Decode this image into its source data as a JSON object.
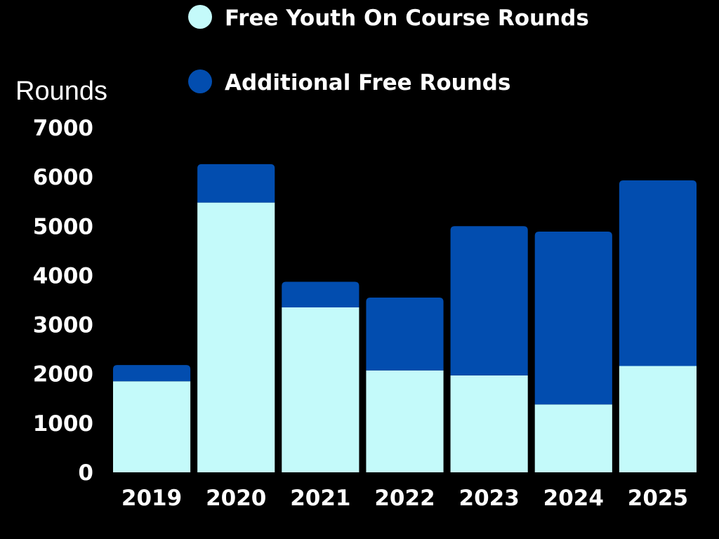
{
  "chart_data": {
    "type": "bar",
    "stacked": true,
    "categories": [
      "2019",
      "2020",
      "2021",
      "2022",
      "2023",
      "2024",
      "2025"
    ],
    "series": [
      {
        "name": "Free Youth On Course Rounds",
        "color": "#c4fafa",
        "values": [
          1850,
          5480,
          3350,
          2070,
          1970,
          1380,
          2160
        ]
      },
      {
        "name": "Additional Free Rounds",
        "color": "#024daf",
        "values": [
          330,
          780,
          520,
          1480,
          3030,
          3510,
          3770
        ]
      }
    ],
    "ylabel": "Rounds",
    "xlabel": "",
    "ylim": [
      0,
      7000
    ],
    "yticks": [
      "0",
      "1000",
      "2000",
      "3000",
      "4000",
      "5000",
      "6000",
      "7000"
    ],
    "grid": false,
    "legend_position": "top"
  }
}
